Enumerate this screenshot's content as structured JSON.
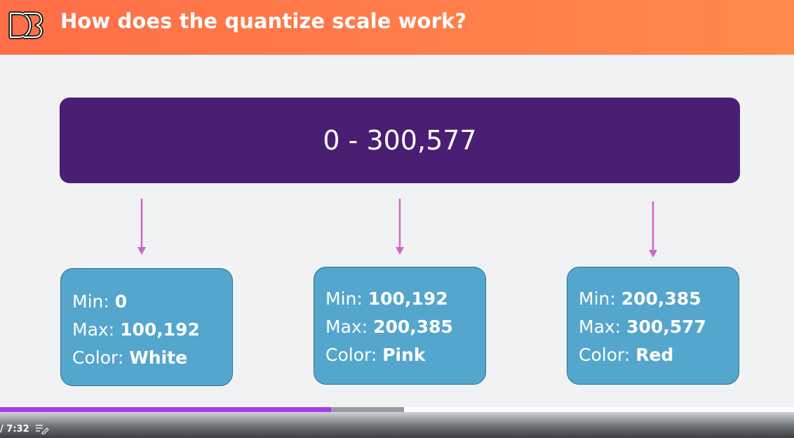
{
  "header": {
    "title": "How does the quantize scale work?",
    "logo_icon": "d3-logo-icon",
    "gradient_start": "#ff6e47",
    "gradient_end": "#ff8a4d"
  },
  "domain_box": {
    "label": "0 - 300,577",
    "color": "#4a1e72"
  },
  "arrow_color": "#d265c4",
  "buckets": [
    {
      "min_label": "Min: ",
      "min": "0",
      "max_label": "Max: ",
      "max": "100,192",
      "color_label": "Color: ",
      "color_value": "White"
    },
    {
      "min_label": "Min: ",
      "min": "100,192",
      "max_label": "Max: ",
      "max": "200,385",
      "color_label": "Color: ",
      "color_value": "Pink"
    },
    {
      "min_label": "Min: ",
      "min": "200,385",
      "max_label": "Max: ",
      "max": "300,577",
      "color_label": "Color: ",
      "color_value": "Red"
    }
  ],
  "bucket_color": "#54a6cd",
  "player": {
    "time": "/ 7:32",
    "transcript_icon": "transcript-icon",
    "progress_played": 0.417,
    "progress_buffered": 0.509,
    "played_color": "#a73de6",
    "buffer_color": "#9a9aa6"
  }
}
